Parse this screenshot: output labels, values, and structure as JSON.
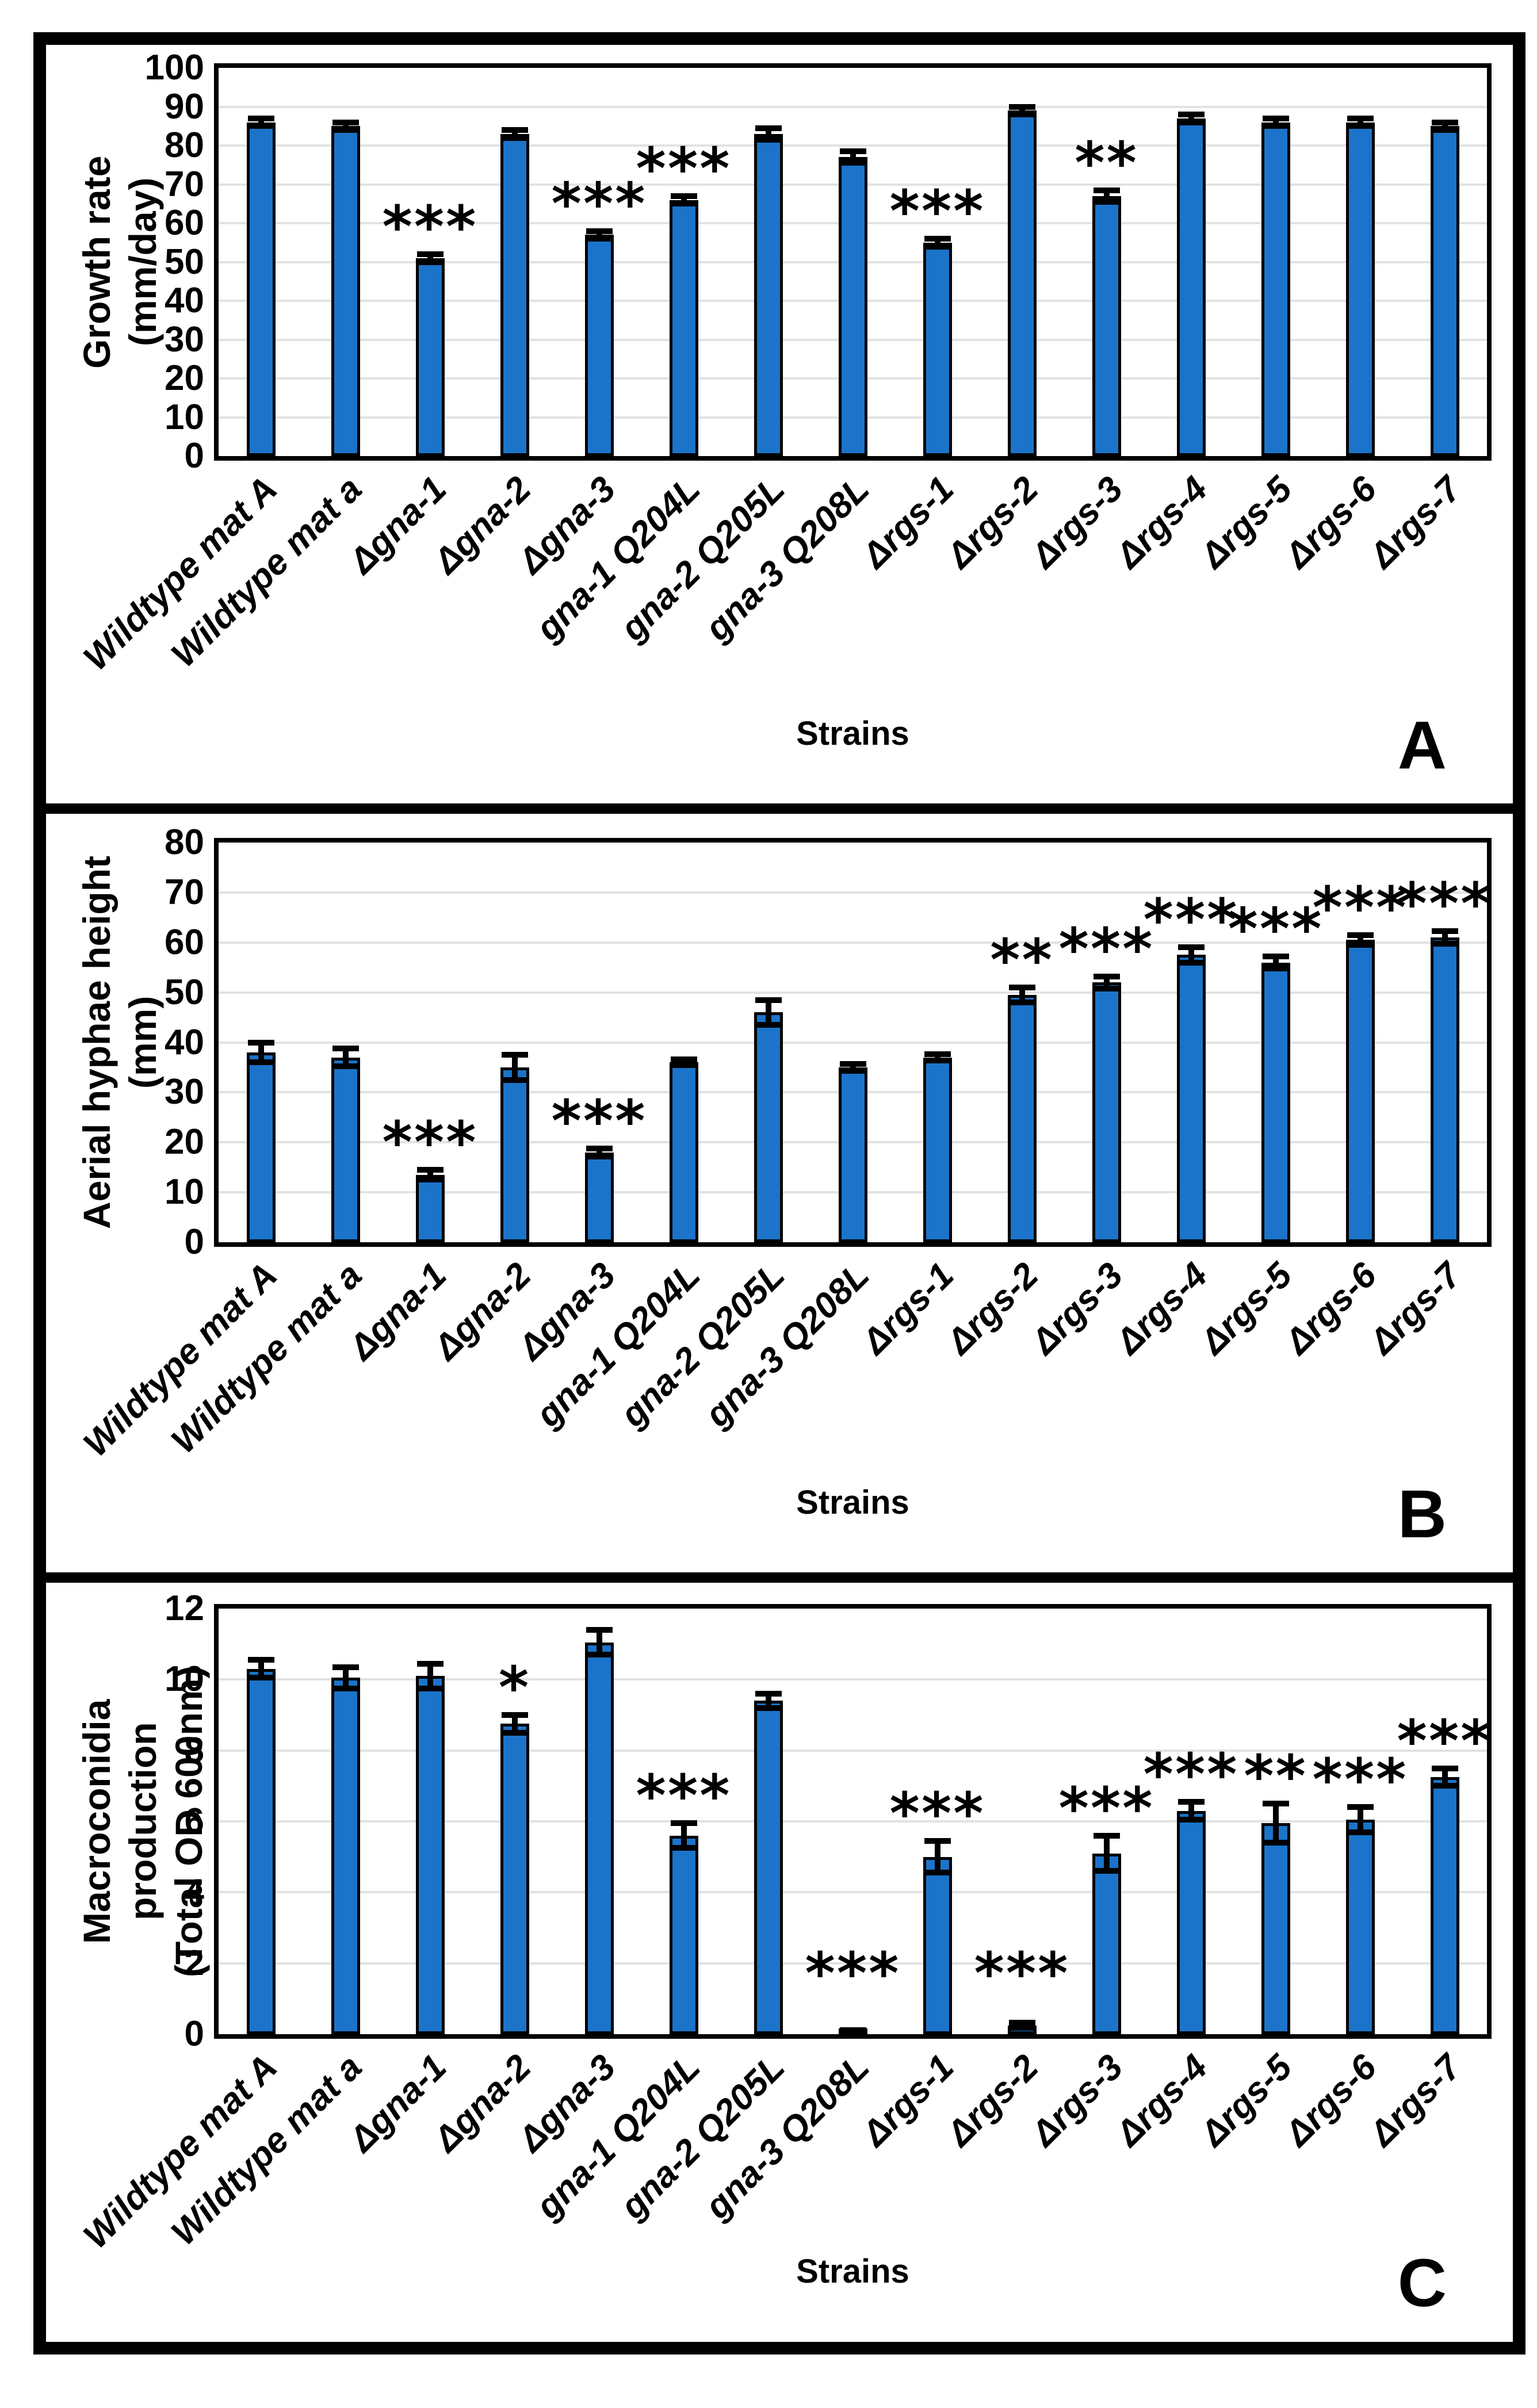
{
  "figure_title": "Three-panel bar figure comparing fungal strains",
  "colors": {
    "bar_fill": "#1B74C9",
    "bar_border": "#000000",
    "error_bar": "#000000",
    "gridline": "#E2E2E2",
    "frame": "#000000",
    "background": "#FFFFFF"
  },
  "strains": [
    "Wildtype mat A",
    "Wildtype mat a",
    "Δgna-1",
    "Δgna-2",
    "Δgna-3",
    "gna-1 Q204L",
    "gna-2 Q205L",
    "gna-3 Q208L",
    "Δrgs-1",
    "Δrgs-2",
    "Δrgs-3",
    "Δrgs-4",
    "Δrgs-5",
    "Δrgs-6",
    "Δrgs-7"
  ],
  "chart_data": [
    {
      "type": "bar",
      "panel_letter": "A",
      "ylabel_lines": [
        "Growth rate",
        "(mm/day)"
      ],
      "ylabel": "Growth rate (mm/day)",
      "xlabel": "Strains",
      "ylim": [
        0,
        100
      ],
      "ytick_step": 10,
      "grid": true,
      "legend": "none",
      "categories": [
        "Wildtype mat A",
        "Wildtype mat a",
        "Δgna-1",
        "Δgna-2",
        "Δgna-3",
        "gna-1 Q204L",
        "gna-2 Q205L",
        "gna-3 Q208L",
        "Δrgs-1",
        "Δrgs-2",
        "Δrgs-3",
        "Δrgs-4",
        "Δrgs-5",
        "Δrgs-6",
        "Δrgs-7"
      ],
      "values": [
        86,
        85,
        51,
        83,
        57,
        66,
        83,
        77,
        55,
        89,
        67,
        87,
        86,
        86,
        85
      ],
      "errors": [
        1,
        1,
        1,
        1,
        1,
        1,
        1.5,
        1.5,
        1,
        1,
        1.5,
        1,
        1,
        1,
        1
      ],
      "significance": [
        "",
        "",
        "***",
        "",
        "***",
        "***",
        "",
        "",
        "***",
        "",
        "**",
        "",
        "",
        "",
        ""
      ]
    },
    {
      "type": "bar",
      "panel_letter": "B",
      "ylabel_lines": [
        "Aerial hyphae height",
        "(mm)"
      ],
      "ylabel": "Aerial hyphae height (mm)",
      "xlabel": "Strains",
      "ylim": [
        0,
        80
      ],
      "ytick_step": 10,
      "grid": true,
      "legend": "none",
      "categories": [
        "Wildtype mat A",
        "Wildtype mat a",
        "Δgna-1",
        "Δgna-2",
        "Δgna-3",
        "gna-1 Q204L",
        "gna-2 Q205L",
        "gna-3 Q208L",
        "Δrgs-1",
        "Δrgs-2",
        "Δrgs-3",
        "Δrgs-4",
        "Δrgs-5",
        "Δrgs-6",
        "Δrgs-7"
      ],
      "values": [
        38,
        37,
        13.5,
        35,
        18,
        36,
        46,
        35,
        37,
        49.5,
        52,
        57.5,
        56,
        60.5,
        61
      ],
      "errors": [
        2,
        1.8,
        1,
        2.5,
        0.8,
        0.6,
        2.5,
        0.7,
        0.6,
        1.5,
        1.2,
        1.5,
        1.2,
        1,
        1.3
      ],
      "significance": [
        "",
        "",
        "***",
        "",
        "***",
        "",
        "",
        "",
        "",
        "**",
        "***",
        "***",
        "***",
        "***",
        "***"
      ]
    },
    {
      "type": "bar",
      "panel_letter": "C",
      "ylabel_lines": [
        "Macroconidia production",
        "(Total OD 600nm)"
      ],
      "ylabel": "Macroconidia production (Total OD 600nm)",
      "xlabel": "Strains",
      "ylim": [
        0,
        12
      ],
      "ytick_step": 2,
      "grid": true,
      "legend": "none",
      "categories": [
        "Wildtype mat A",
        "Wildtype mat a",
        "Δgna-1",
        "Δgna-2",
        "Δgna-3",
        "gna-1 Q204L",
        "gna-2 Q205L",
        "gna-3 Q208L",
        "Δrgs-1",
        "Δrgs-2",
        "Δrgs-3",
        "Δrgs-4",
        "Δrgs-5",
        "Δrgs-6",
        "Δrgs-7"
      ],
      "values": [
        10.3,
        10.05,
        10.1,
        8.75,
        11.05,
        5.6,
        9.4,
        0.07,
        5.0,
        0.25,
        5.1,
        6.3,
        5.95,
        6.05,
        7.25
      ],
      "errors": [
        0.25,
        0.3,
        0.35,
        0.25,
        0.35,
        0.35,
        0.2,
        0.05,
        0.45,
        0.07,
        0.5,
        0.25,
        0.55,
        0.35,
        0.25
      ],
      "significance": [
        "",
        "",
        "",
        "*",
        "",
        "***",
        "",
        "***",
        "***",
        "***",
        "***",
        "***",
        "**",
        "***",
        "***"
      ]
    }
  ]
}
